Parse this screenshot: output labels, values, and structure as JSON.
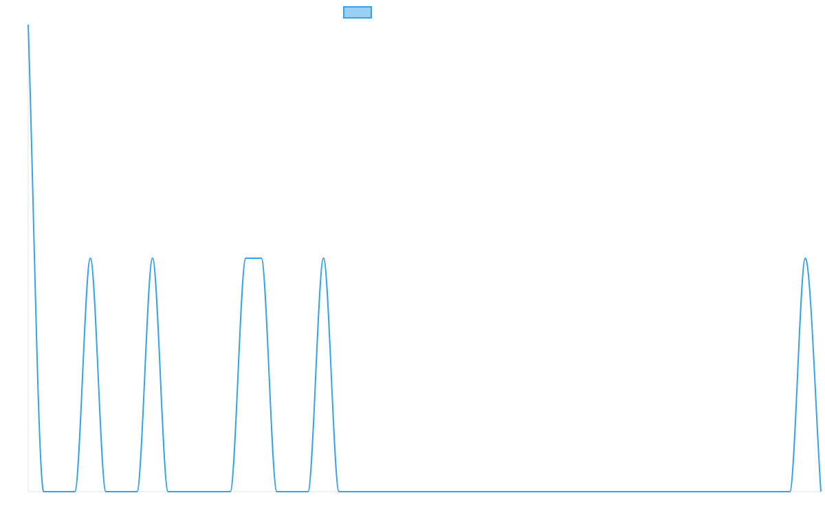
{
  "chart_data": {
    "type": "line",
    "title": "",
    "xlabel": "",
    "ylabel": "",
    "legend": {
      "position": "top",
      "entries": [
        {
          "label": "",
          "fill": "#9ad0f5",
          "stroke": "#36a2eb"
        }
      ]
    },
    "grid": false,
    "ylim": [
      0,
      2
    ],
    "x": [
      0,
      1,
      2,
      3,
      4,
      5,
      6,
      7,
      8,
      9,
      10,
      11,
      12,
      13,
      14,
      15,
      16,
      17,
      18,
      19,
      20,
      21,
      22,
      23,
      24,
      25,
      26,
      27,
      28,
      29,
      30,
      31,
      32,
      33,
      34,
      35,
      36,
      37,
      38,
      39,
      40,
      41,
      42,
      43,
      44,
      45,
      46,
      47,
      48,
      49,
      50,
      51
    ],
    "series": [
      {
        "name": "",
        "color": "#36a2eb",
        "values": [
          2,
          0,
          0,
          0,
          1,
          0,
          0,
          0,
          1,
          0,
          0,
          0,
          0,
          0,
          1,
          1,
          0,
          0,
          0,
          1,
          0,
          0,
          0,
          0,
          0,
          0,
          0,
          0,
          0,
          0,
          0,
          0,
          0,
          0,
          0,
          0,
          0,
          0,
          0,
          0,
          0,
          0,
          0,
          0,
          0,
          0,
          0,
          0,
          0,
          0,
          1,
          0
        ]
      }
    ]
  }
}
